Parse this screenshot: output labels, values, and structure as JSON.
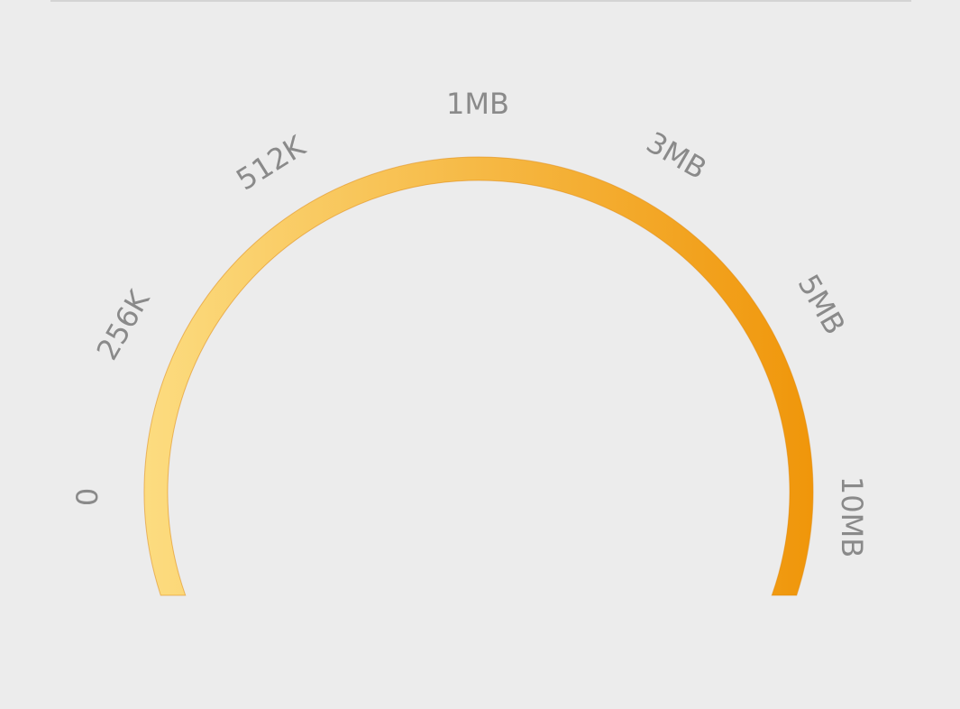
{
  "gauge": {
    "labels": [
      "0",
      "256K",
      "512K",
      "1MB",
      "3MB",
      "5MB",
      "10MB"
    ],
    "colors": {
      "start": "#fcdc80",
      "end": "#f0960a",
      "edge": "#e08a12",
      "label": "#8a8a8a",
      "background": "#ececec"
    }
  }
}
